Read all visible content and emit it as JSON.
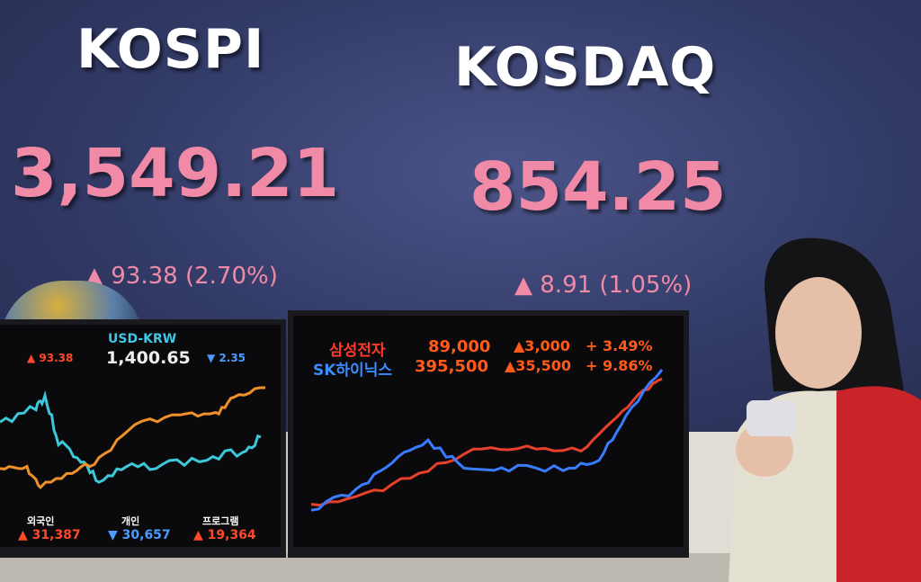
{
  "board": {
    "kospi": {
      "label": "KOSPI",
      "value": "3,549.21",
      "change": "▲ 93.38 (2.70%)"
    },
    "kosdaq": {
      "label": "KOSDAQ",
      "value": "854.25",
      "change": "▲ 8.91 (1.05%)"
    }
  },
  "left_monitor": {
    "left_change": "▲ 93.38",
    "pair": "USD-KRW",
    "rate": "1,400.65",
    "rate_change": "▼ 2.35",
    "flows": [
      {
        "label": "외국인",
        "value": "▲ 31,387"
      },
      {
        "label": "개인",
        "value": "▼ 30,657"
      },
      {
        "label": "프로그램",
        "value": "▲ 19,364"
      }
    ]
  },
  "right_monitor": {
    "rows": [
      {
        "name": "삼성전자",
        "price": "89,000",
        "change": "▲3,000",
        "pct": "+ 3.49%",
        "color": "#ff3a2a"
      },
      {
        "name": "SK하이닉스",
        "price": "395,500",
        "change": "▲35,500",
        "pct": "+ 9.86%",
        "color": "#3a8cff"
      }
    ]
  },
  "colors": {
    "up": "#ff4a2a",
    "down": "#4a9cff",
    "board_value": "#f08aa6"
  }
}
